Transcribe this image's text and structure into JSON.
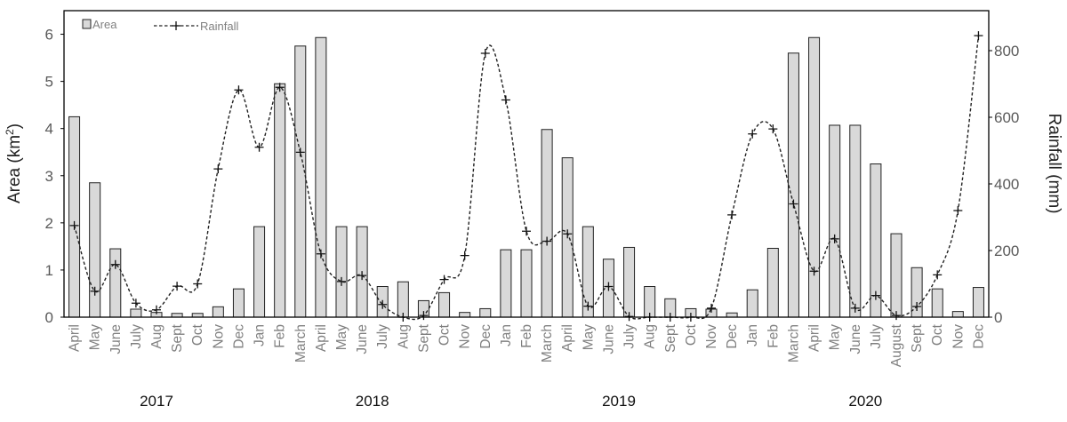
{
  "chart_data": {
    "type": "bar+line",
    "title": "",
    "y_left_label": "Area (km²)",
    "y_left_label_parts": {
      "base": "Area (km",
      "sup": "2",
      "end": ")"
    },
    "y_right_label": "Rainfall (mm)",
    "y_left_lim": [
      0,
      6.5
    ],
    "y_left_ticks": [
      "0",
      "1",
      "2",
      "3",
      "4",
      "5",
      "6"
    ],
    "y_right_lim": [
      0,
      920
    ],
    "y_right_ticks": [
      "0",
      "200",
      "400",
      "600",
      "800"
    ],
    "categories": [
      "April",
      "May",
      "June",
      "July",
      "Aug",
      "Sept",
      "Oct",
      "Nov",
      "Dec",
      "Jan",
      "Feb",
      "March",
      "April",
      "May",
      "June",
      "July",
      "Aug",
      "Sept",
      "Oct",
      "Nov",
      "Dec",
      "Jan",
      "Feb",
      "March",
      "April",
      "May",
      "June",
      "July",
      "Aug",
      "Sept",
      "Oct",
      "Nov",
      "Dec",
      "Jan",
      "Feb",
      "March",
      "April",
      "May",
      "June",
      "July",
      "August",
      "Sept",
      "Oct",
      "Nov",
      "Dec"
    ],
    "years": [
      {
        "label": "2017",
        "start_index": 0,
        "end_index": 8
      },
      {
        "label": "2018",
        "start_index": 9,
        "end_index": 20
      },
      {
        "label": "2019",
        "start_index": 21,
        "end_index": 32
      },
      {
        "label": "2020",
        "start_index": 33,
        "end_index": 44
      }
    ],
    "legend": {
      "placement": "top-left",
      "bar_label": "Area",
      "line_label": "Rainfall"
    },
    "series": [
      {
        "name": "Area",
        "kind": "bar",
        "axis": "left",
        "color": "#d9d9d9",
        "values": [
          4.25,
          2.85,
          1.45,
          0.17,
          0.1,
          0.08,
          0.08,
          0.22,
          0.6,
          1.92,
          4.95,
          5.75,
          5.93,
          1.92,
          1.92,
          0.65,
          0.75,
          0.35,
          0.52,
          0.1,
          0.18,
          1.43,
          1.43,
          3.98,
          3.38,
          1.92,
          1.23,
          1.48,
          0.65,
          0.39,
          0.18,
          0.17,
          0.09,
          0.58,
          1.46,
          5.6,
          5.93,
          4.07,
          4.07,
          3.25,
          1.77,
          1.05,
          0.6,
          0.12,
          0.63
        ]
      },
      {
        "name": "Rainfall",
        "kind": "line",
        "axis": "right",
        "style": "dashed",
        "color": "#222222",
        "values": [
          275,
          78,
          158,
          42,
          22,
          93,
          100,
          445,
          682,
          510,
          690,
          495,
          190,
          107,
          125,
          38,
          0,
          5,
          113,
          185,
          792,
          652,
          258,
          228,
          250,
          33,
          92,
          2,
          0,
          0,
          0,
          27,
          307,
          550,
          565,
          340,
          138,
          235,
          27,
          65,
          5,
          32,
          127,
          320,
          845
        ]
      }
    ]
  }
}
